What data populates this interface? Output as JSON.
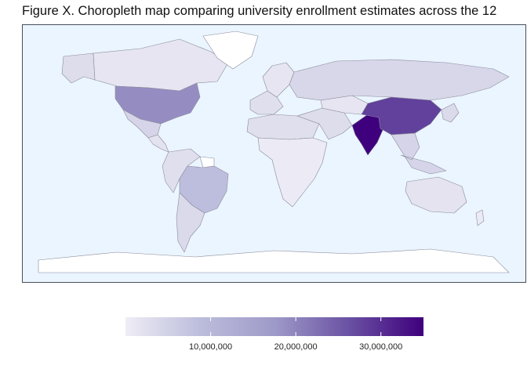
{
  "title": "Figure X. Choropleth map comparing university enrollment estimates across the 12",
  "map": {
    "ocean_color": "#eaf5ff",
    "border_color": "#4a4f5a",
    "no_data_color": "#ffffff",
    "regions": [
      {
        "name": "Alaska",
        "value": 3000000
      },
      {
        "name": "Canada",
        "value": 1500000
      },
      {
        "name": "Greenland",
        "value": null
      },
      {
        "name": "United States",
        "value": 19000000
      },
      {
        "name": "Mexico",
        "value": 4500000
      },
      {
        "name": "Central America",
        "value": 2000000
      },
      {
        "name": "Colombia / Venezuela / Ecuador / Peru",
        "value": 2500000
      },
      {
        "name": "Guianas",
        "value": null
      },
      {
        "name": "Brazil",
        "value": 8500000
      },
      {
        "name": "Southern Cone",
        "value": 3500000
      },
      {
        "name": "Western Europe",
        "value": 2500000
      },
      {
        "name": "Northern Europe",
        "value": 1500000
      },
      {
        "name": "Russia",
        "value": 4000000
      },
      {
        "name": "North Africa",
        "value": 2500000
      },
      {
        "name": "Sub-Saharan Africa",
        "value": 500000
      },
      {
        "name": "Middle East",
        "value": 3000000
      },
      {
        "name": "Central Asia",
        "value": 1500000
      },
      {
        "name": "India",
        "value": 35000000
      },
      {
        "name": "China",
        "value": 28000000
      },
      {
        "name": "Southeast Asia",
        "value": 4500000
      },
      {
        "name": "Japan / Korea",
        "value": 3500000
      },
      {
        "name": "Australia",
        "value": 1800000
      },
      {
        "name": "New Zealand",
        "value": 500000
      },
      {
        "name": "Antarctica",
        "value": null
      }
    ]
  },
  "legend": {
    "gradient_colors": [
      "#efedf5",
      "#bcbddc",
      "#9e9ac8",
      "#6a51a3",
      "#3f007d"
    ],
    "min": 0,
    "max": 35000000,
    "ticks": [
      {
        "value": 10000000,
        "label": "10,000,000"
      },
      {
        "value": 20000000,
        "label": "20,000,000"
      },
      {
        "value": 30000000,
        "label": "30,000,000"
      }
    ]
  }
}
